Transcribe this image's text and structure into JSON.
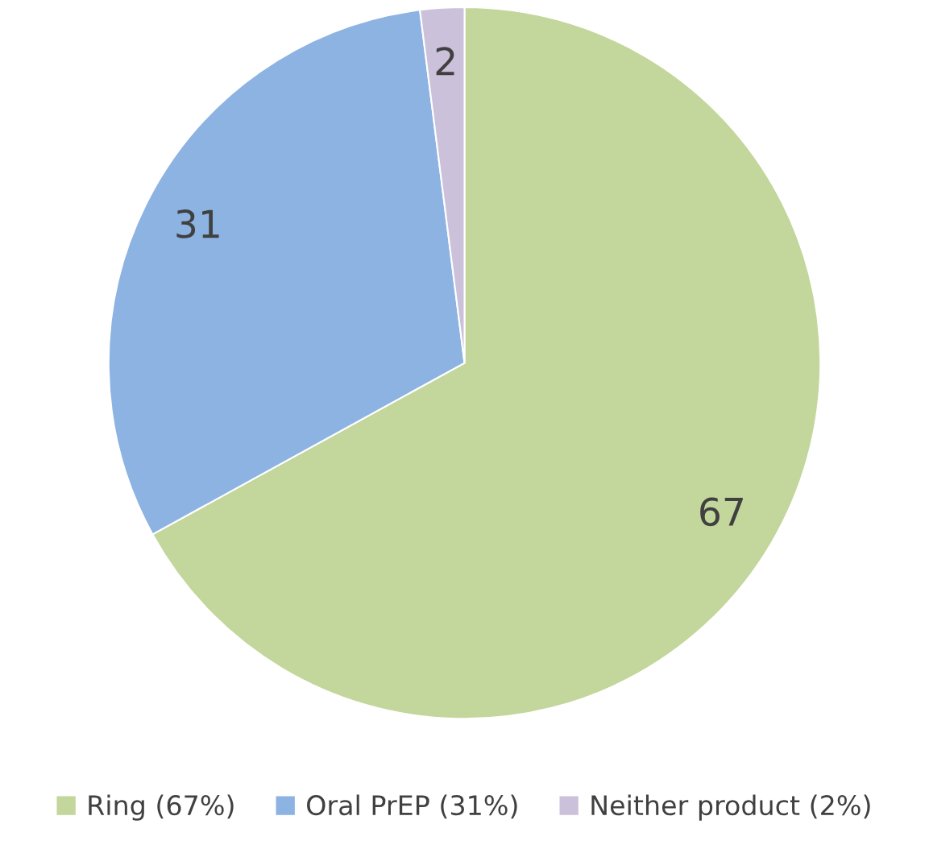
{
  "chart_data": {
    "type": "pie",
    "categories": [
      "Ring (67%)",
      "Oral PrEP (31%)",
      "Neither product (2%)"
    ],
    "values": [
      67,
      31,
      2
    ],
    "colors": [
      "#c3d69b",
      "#8db3e2",
      "#ccc1da"
    ],
    "data_labels": true,
    "legend": "bottom"
  }
}
